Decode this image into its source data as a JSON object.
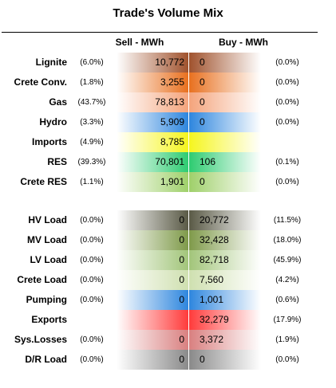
{
  "title": "Trade's Volume Mix",
  "headers": {
    "sell": "Sell - MWh",
    "buy": "Buy - MWh"
  },
  "chart_data": {
    "type": "table",
    "columns": [
      "Sell - MWh",
      "Buy - MWh"
    ],
    "rows": [
      {
        "label": "Lignite",
        "sell_pct": "(6.0%)",
        "sell": "10,772",
        "buy": "0",
        "buy_pct": "(0.0%)",
        "sell_color": "#a0522d",
        "buy_color": "#a0522d"
      },
      {
        "label": "Crete Conv.",
        "sell_pct": "(1.8%)",
        "sell": "3,255",
        "buy": "0",
        "buy_pct": "(0.0%)",
        "sell_color": "#e8701f",
        "buy_color": "#e8701f"
      },
      {
        "label": "Gas",
        "sell_pct": "(43.7%)",
        "sell": "78,813",
        "buy": "0",
        "buy_pct": "(0.0%)",
        "sell_color": "#f4a47c",
        "buy_color": "#f4a47c"
      },
      {
        "label": "Hydro",
        "sell_pct": "(3.3%)",
        "sell": "5,909",
        "buy": "0",
        "buy_pct": "(0.0%)",
        "sell_color": "#2e86de",
        "buy_color": "#2e86de"
      },
      {
        "label": "Imports",
        "sell_pct": "(4.9%)",
        "sell": "8,785",
        "buy": "",
        "buy_pct": "",
        "sell_color": "#f5f51e",
        "buy_color": "#f5f51e"
      },
      {
        "label": "RES",
        "sell_pct": "(39.3%)",
        "sell": "70,801",
        "buy": "106",
        "buy_pct": "(0.1%)",
        "sell_color": "#2ecc71",
        "buy_color": "#2ecc71"
      },
      {
        "label": "Crete RES",
        "sell_pct": "(1.1%)",
        "sell": "1,901",
        "buy": "0",
        "buy_pct": "(0.0%)",
        "sell_color": "#9fd06a",
        "buy_color": "#9fd06a"
      },
      {
        "label": "HV Load",
        "sell_pct": "(0.0%)",
        "sell": "0",
        "buy": "20,772",
        "buy_pct": "(11.5%)",
        "sell_color": "#5a5a46",
        "buy_color": "#5a5a46"
      },
      {
        "label": "MV Load",
        "sell_pct": "(0.0%)",
        "sell": "0",
        "buy": "32,428",
        "buy_pct": "(18.0%)",
        "sell_color": "#7f9a4a",
        "buy_color": "#7f9a4a"
      },
      {
        "label": "LV Load",
        "sell_pct": "(0.0%)",
        "sell": "0",
        "buy": "82,718",
        "buy_pct": "(45.9%)",
        "sell_color": "#a2c57a",
        "buy_color": "#a2c57a"
      },
      {
        "label": "Crete Load",
        "sell_pct": "(0.0%)",
        "sell": "0",
        "buy": "7,560",
        "buy_pct": "(4.2%)",
        "sell_color": "#cfe0b0",
        "buy_color": "#cfe0b0"
      },
      {
        "label": "Pumping",
        "sell_pct": "(0.0%)",
        "sell": "0",
        "buy": "1,001",
        "buy_pct": "(0.6%)",
        "sell_color": "#2e86de",
        "buy_color": "#2e86de"
      },
      {
        "label": "Exports",
        "sell_pct": "",
        "sell": "",
        "buy": "32,279",
        "buy_pct": "(17.9%)",
        "sell_color": "#ff3b3b",
        "buy_color": "#ff3b3b"
      },
      {
        "label": "Sys.Losses",
        "sell_pct": "(0.0%)",
        "sell": "0",
        "buy": "3,372",
        "buy_pct": "(1.9%)",
        "sell_color": "#d98080",
        "buy_color": "#d98080"
      },
      {
        "label": "D/R Load",
        "sell_pct": "(0.0%)",
        "sell": "0",
        "buy": "0",
        "buy_pct": "(0.0%)",
        "sell_color": "#8a8a8a",
        "buy_color": "#8a8a8a"
      }
    ]
  }
}
